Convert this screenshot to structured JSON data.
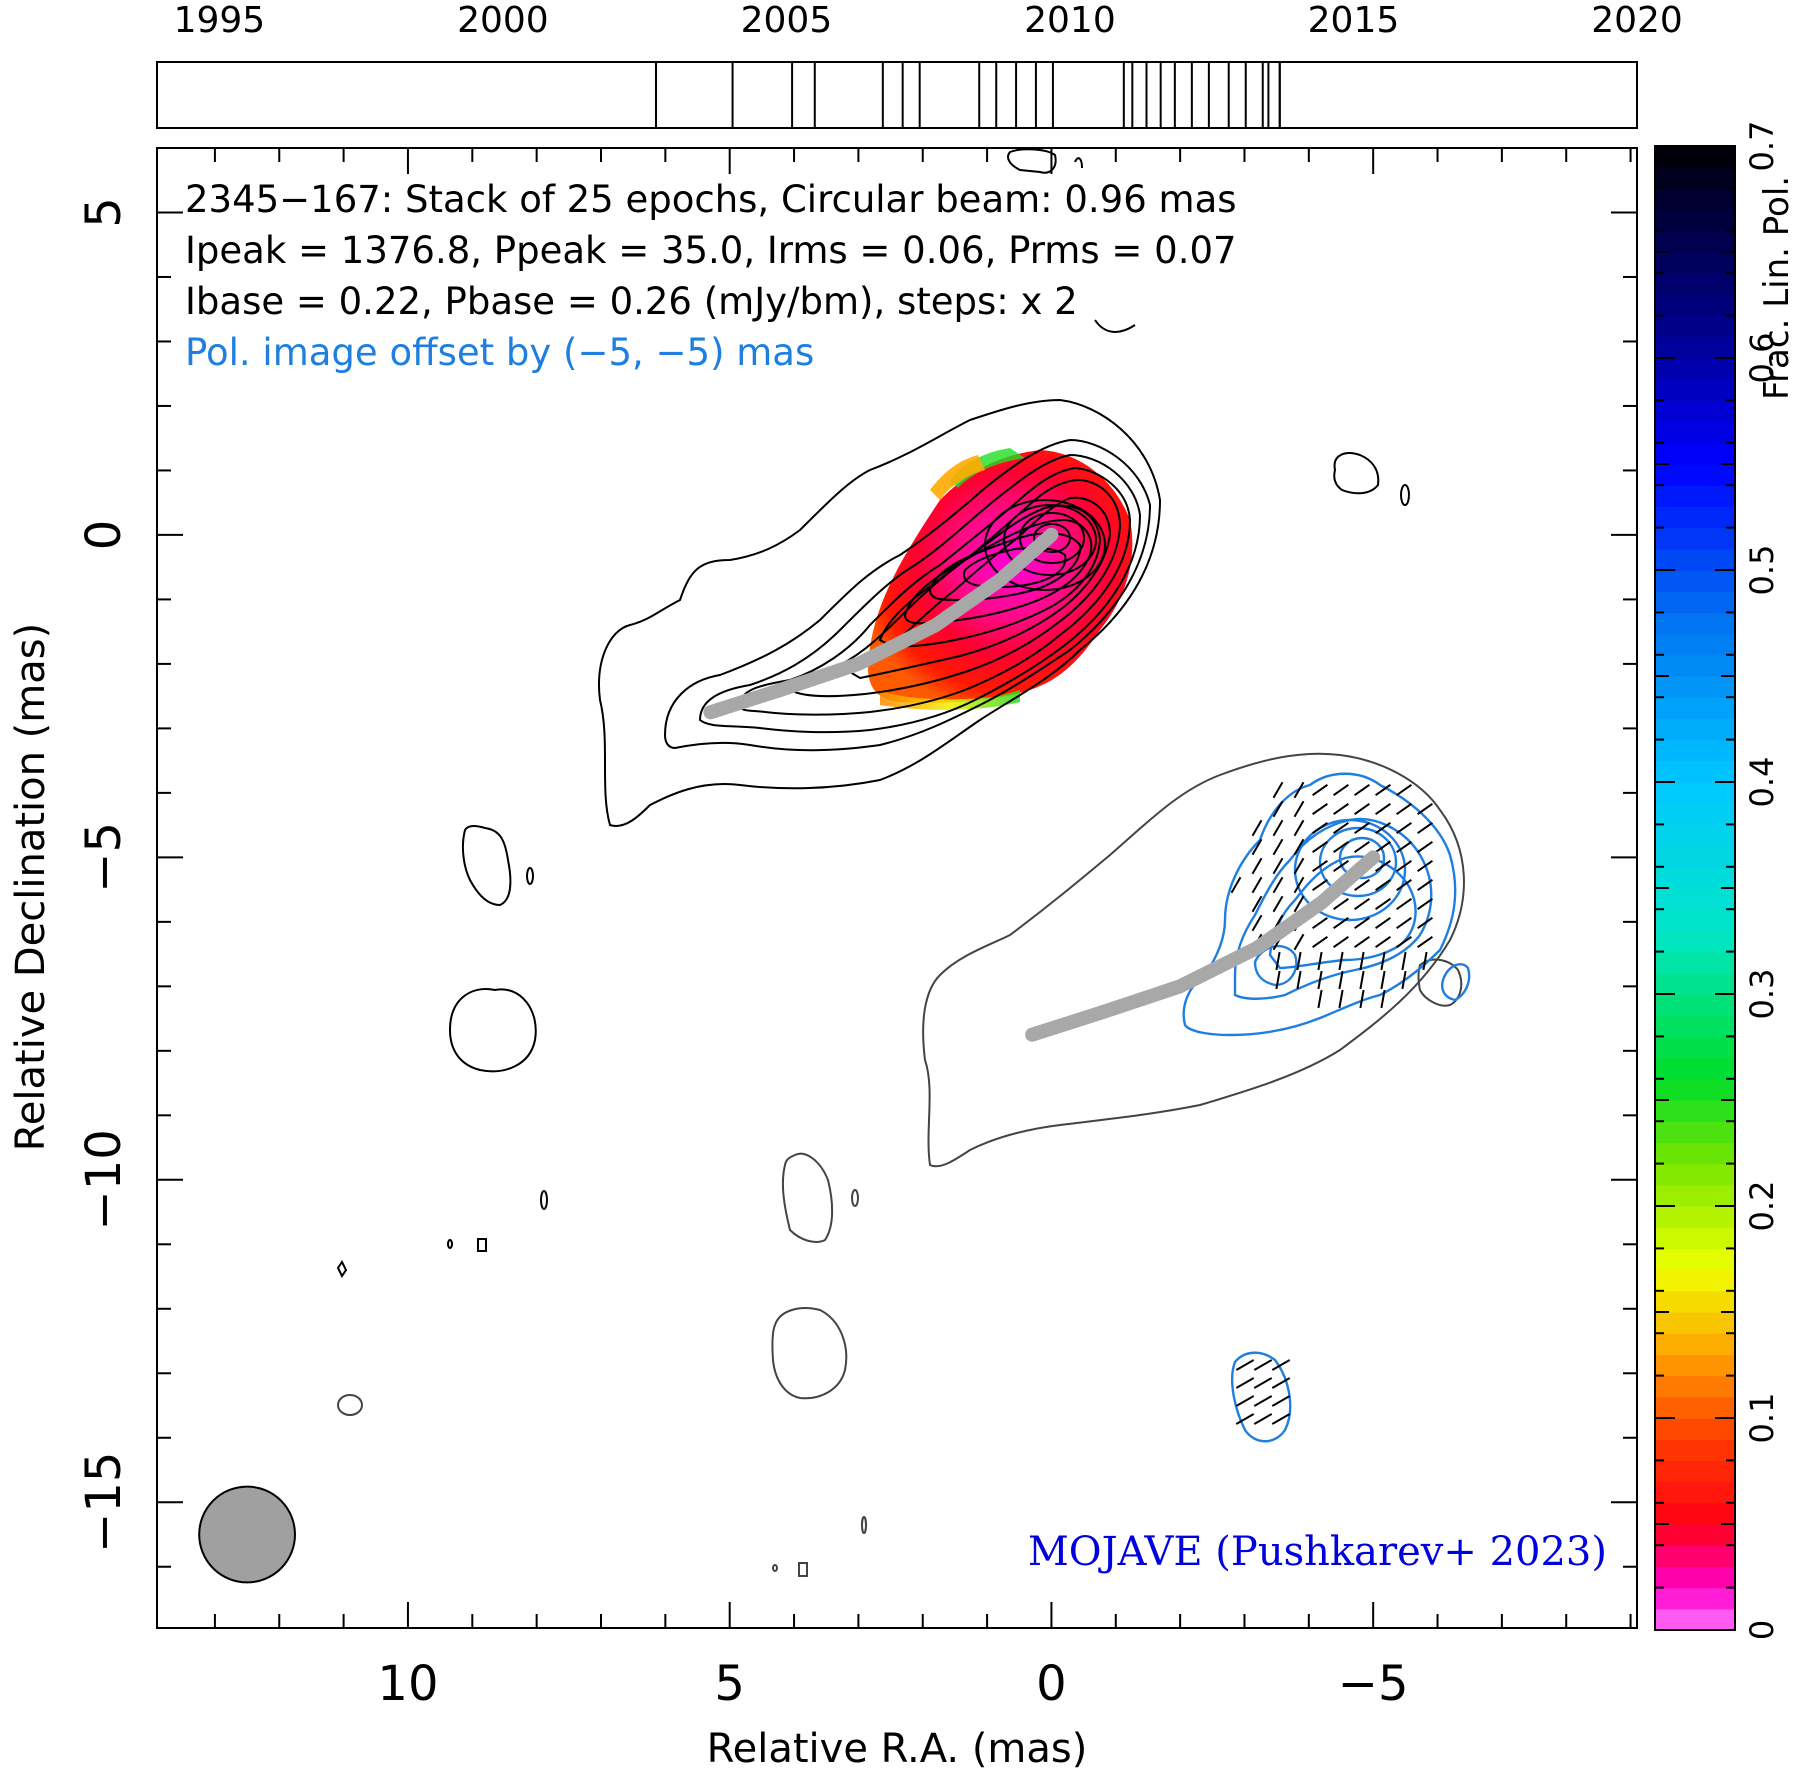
{
  "chart_data": {
    "type": "heatmap",
    "title_lines": [
      "2345−167: Stack of 25 epochs, Circular beam: 0.96 mas",
      "Ipeak = 1376.8, Ppeak = 35.0, Irms = 0.06, Prms = 0.07",
      "Ibase = 0.22, Pbase = 0.26 (mJy/bm), steps: x 2"
    ],
    "offset_note": "Pol. image offset by (−5, −5) mas",
    "credit": "MOJAVE (Pushkarev+ 2023)",
    "xlabel": "Relative R.A. (mas)",
    "ylabel": "Relative Declination (mas)",
    "xlim": [
      13.9,
      -9.1
    ],
    "ylim": [
      -16.95,
      6.0
    ],
    "x_ticks": [
      10,
      5,
      0,
      -5
    ],
    "x_tick_labels": [
      "10",
      "5",
      "0",
      "−5"
    ],
    "y_ticks": [
      5,
      0,
      -5,
      -10,
      -15
    ],
    "y_tick_labels": [
      "5",
      "0",
      "−5",
      "−10",
      "−15"
    ],
    "timeline": {
      "range": [
        1993.9,
        2020.0
      ],
      "tick_labels": [
        "1995",
        "2000",
        "2005",
        "2010",
        "2015",
        "2020"
      ],
      "tick_years": [
        1995,
        2000,
        2005,
        2010,
        2015,
        2020
      ],
      "epochs": [
        2002.7,
        2004.05,
        2005.1,
        2005.5,
        2006.7,
        2007.05,
        2007.35,
        2008.4,
        2008.7,
        2009.05,
        2009.4,
        2009.7,
        2010.95,
        2011.1,
        2011.35,
        2011.6,
        2011.85,
        2012.15,
        2012.45,
        2012.8,
        2013.1,
        2013.4,
        2013.5,
        2013.7,
        2013.7
      ]
    },
    "colorbar": {
      "label": "Frac. Lin. Pol.",
      "range": [
        0,
        0.7
      ],
      "tick_values": [
        0,
        0.1,
        0.2,
        0.3,
        0.4,
        0.5,
        0.6,
        0.7
      ],
      "tick_labels": [
        "0",
        "0.1",
        "0.2",
        "0.3",
        "0.4",
        "0.5",
        "0.6",
        "0.7"
      ]
    },
    "beam": {
      "ra": 12.5,
      "dec": -15.5,
      "diameter_mas": 0.96
    },
    "ridge_line": {
      "points": [
        [
          5.3,
          -2.75
        ],
        [
          4.2,
          -2.4
        ],
        [
          3.0,
          -2.0
        ],
        [
          1.8,
          -1.4
        ],
        [
          0.8,
          -0.7
        ],
        [
          0,
          0
        ]
      ],
      "offset": [
        -5,
        -5
      ]
    },
    "colors": {
      "intensity_contour": "#000000",
      "offset_intensity_contour": "#444444",
      "pol_contour": "#1f7fe0",
      "ridge": "#a8a8a8",
      "offset_note": "#1f7fe0",
      "credit": "#0000dd",
      "beam_fill": "#a0a0a0"
    }
  }
}
